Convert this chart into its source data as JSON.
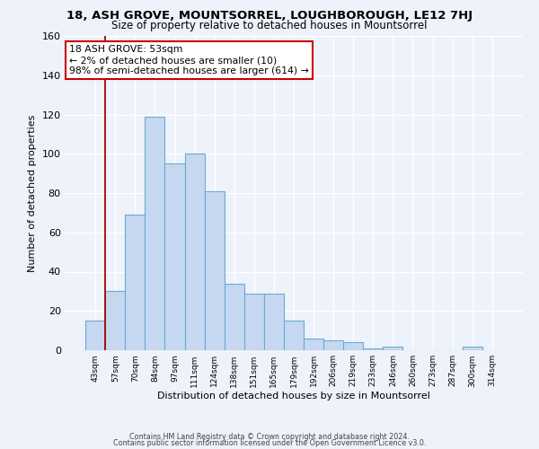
{
  "title1": "18, ASH GROVE, MOUNTSORREL, LOUGHBOROUGH, LE12 7HJ",
  "title2": "Size of property relative to detached houses in Mountsorrel",
  "xlabel": "Distribution of detached houses by size in Mountsorrel",
  "ylabel": "Number of detached properties",
  "footer1": "Contains HM Land Registry data © Crown copyright and database right 2024.",
  "footer2": "Contains public sector information licensed under the Open Government Licence v3.0.",
  "annotation_title": "18 ASH GROVE: 53sqm",
  "annotation_line1": "← 2% of detached houses are smaller (10)",
  "annotation_line2": "98% of semi-detached houses are larger (614) →",
  "bar_labels": [
    "43sqm",
    "57sqm",
    "70sqm",
    "84sqm",
    "97sqm",
    "111sqm",
    "124sqm",
    "138sqm",
    "151sqm",
    "165sqm",
    "179sqm",
    "192sqm",
    "206sqm",
    "219sqm",
    "233sqm",
    "246sqm",
    "260sqm",
    "273sqm",
    "287sqm",
    "300sqm",
    "314sqm"
  ],
  "bar_values": [
    15,
    30,
    69,
    119,
    95,
    100,
    81,
    34,
    29,
    29,
    15,
    6,
    5,
    4,
    1,
    2,
    0,
    0,
    0,
    2,
    0
  ],
  "bar_color": "#c5d8f0",
  "bar_edge_color": "#6aaad4",
  "vline_color": "#aa0000",
  "ylim": [
    0,
    160
  ],
  "yticks": [
    0,
    20,
    40,
    60,
    80,
    100,
    120,
    140,
    160
  ],
  "annotation_box_color": "#ffffff",
  "annotation_box_edge": "#cc0000",
  "bg_color": "#eef2fa",
  "grid_color": "#ffffff",
  "title1_fontsize": 9.5,
  "title2_fontsize": 8.5
}
